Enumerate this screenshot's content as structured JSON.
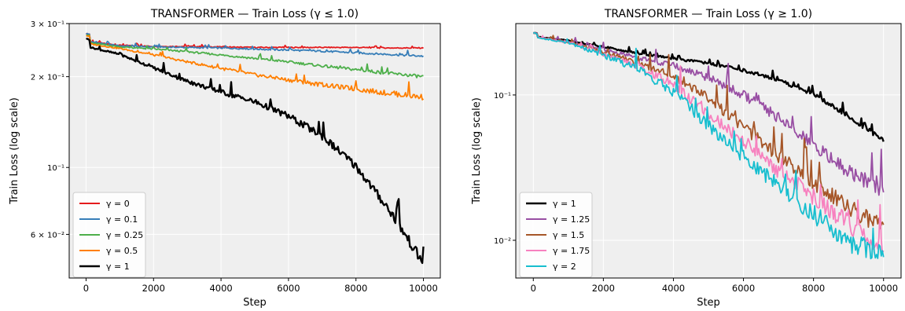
{
  "chart_data": [
    {
      "type": "line",
      "title": "TRANSFORMER  —  Train Loss  (γ ≤ 1.0)",
      "xlabel": "Step",
      "ylabel": "Train Loss (log scale)",
      "yscale": "log",
      "xlim": [
        -500,
        10500
      ],
      "ylim": [
        0.043,
        0.3
      ],
      "x_ticks": [
        0,
        2000,
        4000,
        6000,
        8000,
        10000
      ],
      "y_ticks": [
        {
          "value": 0.3,
          "label": "3 × 10⁻¹"
        },
        {
          "value": 0.2,
          "label": "2 × 10⁻¹"
        },
        {
          "value": 0.1,
          "label": "10⁻¹"
        },
        {
          "value": 0.06,
          "label": "6 × 10⁻²"
        }
      ],
      "grid": true,
      "legend_position": "lower-left",
      "x": [
        0,
        1000,
        2000,
        3000,
        4000,
        5000,
        6000,
        7000,
        8000,
        9000,
        10000
      ],
      "series": [
        {
          "name": "γ = 0",
          "color": "#e41a1c",
          "values": [
            0.262,
            0.254,
            0.252,
            0.252,
            0.251,
            0.25,
            0.25,
            0.25,
            0.25,
            0.249,
            0.249
          ]
        },
        {
          "name": "γ = 0.1",
          "color": "#377eb8",
          "values": [
            0.262,
            0.253,
            0.251,
            0.25,
            0.249,
            0.247,
            0.245,
            0.243,
            0.24,
            0.237,
            0.234
          ]
        },
        {
          "name": "γ = 0.25",
          "color": "#4daf4a",
          "values": [
            0.26,
            0.251,
            0.247,
            0.242,
            0.236,
            0.23,
            0.224,
            0.217,
            0.211,
            0.205,
            0.2
          ]
        },
        {
          "name": "γ = 0.5",
          "color": "#ff7f00",
          "values": [
            0.258,
            0.248,
            0.236,
            0.224,
            0.213,
            0.203,
            0.195,
            0.188,
            0.182,
            0.176,
            0.171
          ]
        },
        {
          "name": "γ = 1",
          "color": "#000000",
          "values": [
            0.252,
            0.237,
            0.214,
            0.193,
            0.178,
            0.165,
            0.148,
            0.127,
            0.101,
            0.072,
            0.048
          ]
        }
      ]
    },
    {
      "type": "line",
      "title": "TRANSFORMER  —  Train Loss  (γ ≥ 1.0)",
      "xlabel": "Step",
      "ylabel": "Train Loss (log scale)",
      "yscale": "log",
      "xlim": [
        -500,
        10500
      ],
      "ylim": [
        0.0055,
        0.31
      ],
      "x_ticks": [
        0,
        2000,
        4000,
        6000,
        8000,
        10000
      ],
      "y_ticks": [
        {
          "value": 0.1,
          "label": "10⁻¹"
        },
        {
          "value": 0.01,
          "label": "10⁻²"
        }
      ],
      "grid": true,
      "legend_position": "lower-left",
      "x": [
        0,
        1000,
        2000,
        3000,
        4000,
        5000,
        6000,
        7000,
        8000,
        9000,
        10000
      ],
      "series": [
        {
          "name": "γ = 1",
          "color": "#000000",
          "values": [
            0.252,
            0.237,
            0.214,
            0.193,
            0.178,
            0.165,
            0.148,
            0.127,
            0.101,
            0.072,
            0.048
          ]
        },
        {
          "name": "γ = 1.25",
          "color": "#984ea3",
          "values": [
            0.252,
            0.235,
            0.205,
            0.18,
            0.16,
            0.13,
            0.1,
            0.07,
            0.045,
            0.03,
            0.022
          ]
        },
        {
          "name": "γ = 1.5",
          "color": "#a65628",
          "values": [
            0.252,
            0.232,
            0.198,
            0.165,
            0.135,
            0.095,
            0.06,
            0.038,
            0.025,
            0.017,
            0.012
          ]
        },
        {
          "name": "γ = 1.75",
          "color": "#f781bf",
          "values": [
            0.252,
            0.23,
            0.192,
            0.158,
            0.118,
            0.075,
            0.048,
            0.03,
            0.02,
            0.013,
            0.009
          ]
        },
        {
          "name": "γ = 2",
          "color": "#17becf",
          "values": [
            0.252,
            0.228,
            0.188,
            0.15,
            0.105,
            0.062,
            0.038,
            0.024,
            0.015,
            0.01,
            0.0075
          ]
        }
      ]
    }
  ]
}
